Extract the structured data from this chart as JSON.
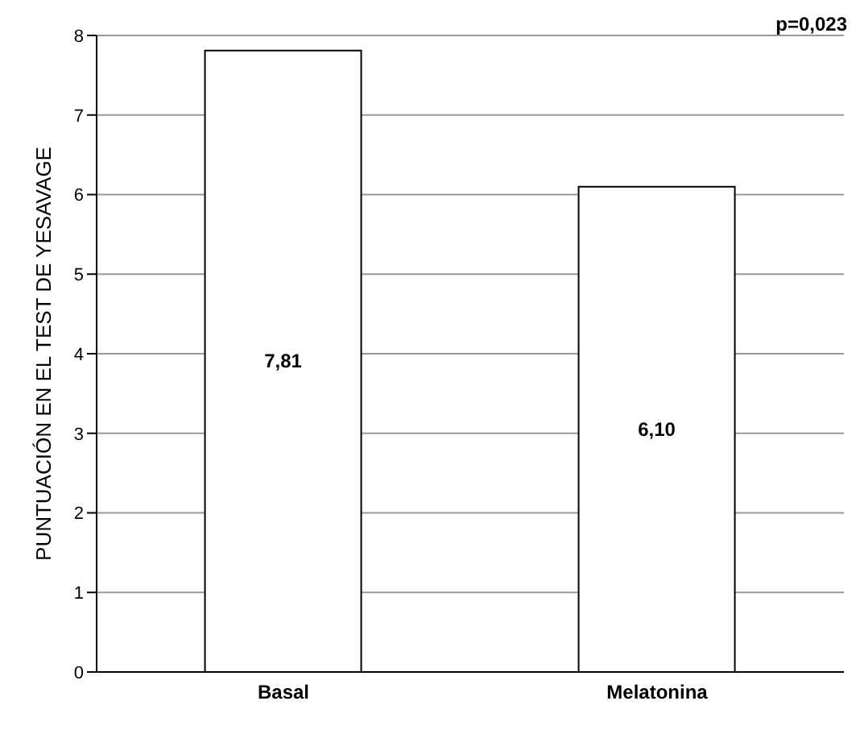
{
  "chart_data": {
    "type": "bar",
    "ylabel": "PUNTUACIÓN EN EL TEST DE YESAVAGE",
    "categories": [
      "Basal",
      "Melatonina"
    ],
    "values": [
      7.81,
      6.1
    ],
    "value_labels": [
      "7,81",
      "6,10"
    ],
    "color": "#ffffff",
    "ylim": [
      0,
      8
    ],
    "yticks": [
      0,
      1,
      2,
      3,
      4,
      5,
      6,
      7,
      8
    ],
    "grid": "y",
    "annotations": [
      "p=0,023"
    ]
  }
}
